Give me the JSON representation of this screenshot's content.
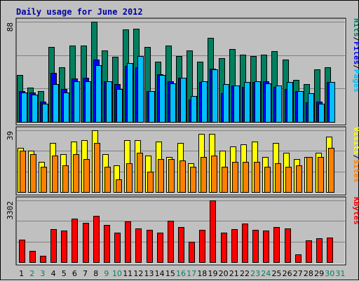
{
  "page": {
    "background": "#c0c0c0",
    "title_color": "#0000a0"
  },
  "chart_data": {
    "type": "bar",
    "title": "Daily usage for June 2012",
    "days": [
      "1",
      "2",
      "3",
      "4",
      "5",
      "6",
      "7",
      "8",
      "9",
      "10",
      "11",
      "12",
      "13",
      "14",
      "15",
      "16",
      "17",
      "18",
      "19",
      "20",
      "21",
      "22",
      "23",
      "24",
      "25",
      "26",
      "27",
      "28",
      "29",
      "30",
      "31"
    ],
    "weekend_days": [
      "2",
      "3",
      "9",
      "10",
      "16",
      "17",
      "23",
      "24",
      "30",
      "31"
    ],
    "colors": {
      "hits": "#008060",
      "files": "#0080ff",
      "pages": "#00c0ff",
      "visits": "#ffff00",
      "sites": "#ff8000",
      "kbytes": "#ff0000",
      "weekday_label": "#000000",
      "weekend_label": "#008060"
    },
    "panels": [
      {
        "name": "hits-files-pages",
        "max_label": "88",
        "ylim": [
          0,
          88
        ],
        "legend": [
          {
            "text": "Hits",
            "color": "#008060"
          },
          {
            "text": "/",
            "color": "#000000"
          },
          {
            "text": "Files",
            "color": "#0000ff"
          },
          {
            "text": "/",
            "color": "#000000"
          },
          {
            "text": "Pages",
            "color": "#00c0ff"
          }
        ],
        "series": [
          {
            "name": "Hits",
            "color": "#008060",
            "values": [
              41,
              30,
              27,
              66,
              48,
              67,
              67,
              88,
              63,
              57,
              81,
              82,
              66,
              53,
              67,
              58,
              63,
              53,
              74,
              56,
              64,
              59,
              58,
              59,
              62,
              55,
              37,
              33,
              46,
              48,
              null
            ]
          },
          {
            "name": "Files",
            "color": "#0000ff",
            "values": [
              27,
              26,
              18,
              43,
              29,
              38,
              39,
              55,
              36,
              33,
              49,
              48,
              27,
              42,
              36,
              39,
              20,
              35,
              47,
              25,
              32,
              31,
              35,
              36,
              31,
              29,
              27,
              17,
              18,
              35,
              null
            ]
          },
          {
            "name": "Pages",
            "color": "#00c0ff",
            "values": [
              26,
              24,
              16,
              33,
              26,
              36,
              36,
              50,
              36,
              29,
              52,
              58,
              27,
              41,
              34,
              39,
              23,
              36,
              46,
              33,
              32,
              35,
              36,
              34,
              32,
              35,
              27,
              25,
              16,
              35,
              null
            ]
          }
        ]
      },
      {
        "name": "visits-sites",
        "max_label": "39",
        "ylim": [
          0,
          39
        ],
        "legend": [
          {
            "text": "Visits",
            "color": "#ffff00"
          },
          {
            "text": "/",
            "color": "#000000"
          },
          {
            "text": "Sites",
            "color": "#ff8000"
          }
        ],
        "series": [
          {
            "name": "Visits",
            "color": "#ffff00",
            "values": [
              28,
              26,
              19,
              31,
              24,
              32,
              33,
              39,
              24,
              17,
              33,
              33,
              23,
              32,
              22,
              31,
              18,
              37,
              37,
              26,
              29,
              30,
              32,
              22,
              31,
              25,
              21,
              22,
              25,
              35,
              null
            ]
          },
          {
            "name": "Sites",
            "color": "#ff8000",
            "values": [
              26,
              24,
              16,
              23,
              17,
              24,
              21,
              31,
              16,
              8,
              18,
              25,
              13,
              21,
              21,
              20,
              16,
              22,
              23,
              16,
              19,
              19,
              19,
              16,
              18,
              16,
              17,
              22,
              22,
              28,
              null
            ]
          }
        ]
      },
      {
        "name": "kbytes",
        "max_label": "3302",
        "ylim": [
          0,
          3302
        ],
        "legend": [
          {
            "text": "KBytes",
            "color": "#ff0000"
          }
        ],
        "series": [
          {
            "name": "KBytes",
            "color": "#ff0000",
            "values": [
              1214,
              588,
              354,
              1780,
              1695,
              2328,
              2100,
              2462,
              1988,
              1566,
              2160,
              1794,
              1708,
              1566,
              2205,
              1865,
              1076,
              1743,
              3302,
              1570,
              1755,
              2077,
              1743,
              1686,
              1865,
              1809,
              400,
              1155,
              1276,
              1300,
              null
            ]
          }
        ]
      }
    ]
  }
}
